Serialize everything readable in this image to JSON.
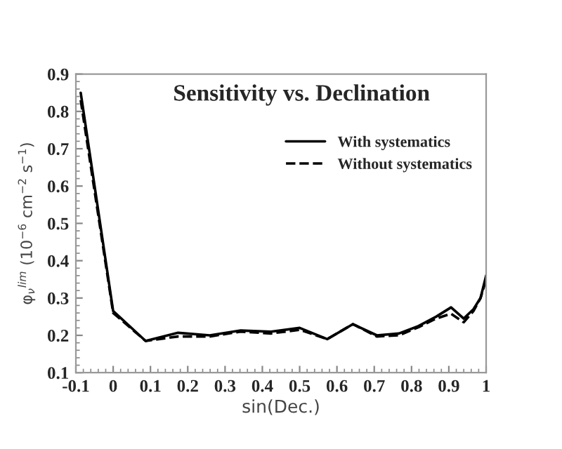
{
  "chart_data": {
    "type": "line",
    "title": "Sensitivity vs. Declination",
    "xlabel": "sin(Dec.)",
    "ylabel": "φ$_{ν}$$^{lim}$ (10$^{−6}$ cm$^{−2}$ s$^{−1}$)",
    "x": [
      -0.087,
      0,
      0.087,
      0.174,
      0.259,
      0.342,
      0.423,
      0.5,
      0.574,
      0.643,
      0.707,
      0.766,
      0.819,
      0.866,
      0.906,
      0.94,
      0.966,
      0.985,
      1
    ],
    "series": [
      {
        "name": "With systematics",
        "color": "#000000",
        "line_style": "solid",
        "values": [
          0.85,
          0.265,
          0.185,
          0.207,
          0.2,
          0.213,
          0.21,
          0.22,
          0.19,
          0.23,
          0.2,
          0.205,
          0.225,
          0.25,
          0.275,
          0.245,
          0.27,
          0.3,
          0.36
        ]
      },
      {
        "name": "Without systematics",
        "color": "#000000",
        "line_style": "dashed",
        "values": [
          0.83,
          0.26,
          0.185,
          0.197,
          0.197,
          0.21,
          0.205,
          0.215,
          0.19,
          0.23,
          0.197,
          0.2,
          0.222,
          0.245,
          0.258,
          0.235,
          0.265,
          0.3,
          0.35
        ]
      }
    ],
    "xlim": [
      -0.1,
      1
    ],
    "xticks": [
      -0.1,
      0,
      0.1,
      0.2,
      0.3,
      0.4,
      0.5,
      0.6,
      0.7,
      0.8,
      0.9,
      1
    ],
    "ylim": [
      0.1,
      0.9
    ],
    "yticks": [
      0.1,
      0.2,
      0.3,
      0.4,
      0.5,
      0.6,
      0.7,
      0.8,
      0.9
    ],
    "grid": false,
    "legend": "top right"
  }
}
